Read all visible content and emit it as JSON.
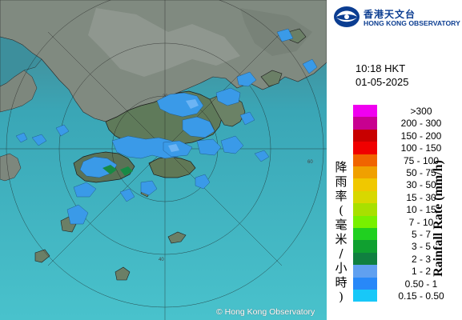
{
  "logo": {
    "name_zh": "香港天文台",
    "name_en": "HONG KONG OBSERVATORY",
    "icon": "observatory-logo-icon",
    "color": "#0b3d91"
  },
  "timestamp": {
    "time": "10:18 HKT",
    "date": "01-05-2025"
  },
  "legend": {
    "title_zh": "降雨率(毫米/小時)",
    "title_en": "Rainfall Rate (mm/h)",
    "classes": [
      {
        "label": ">300",
        "color": "#f000f0"
      },
      {
        "label": "200 - 300",
        "color": "#c80090"
      },
      {
        "label": "150 - 200",
        "color": "#c80000"
      },
      {
        "label": "100 - 150",
        "color": "#f00000"
      },
      {
        "label": "75 - 100",
        "color": "#f06400"
      },
      {
        "label": "50 - 75",
        "color": "#f0a000"
      },
      {
        "label": "30 - 50",
        "color": "#f0c800"
      },
      {
        "label": "15 - 30",
        "color": "#d8d800"
      },
      {
        "label": "10 - 15",
        "color": "#a8e000"
      },
      {
        "label": "7 - 10",
        "color": "#78f000"
      },
      {
        "label": "5 - 7",
        "color": "#20d020"
      },
      {
        "label": "3 - 5",
        "color": "#10a030"
      },
      {
        "label": "2 - 3",
        "color": "#108040"
      },
      {
        "label": "1 - 2",
        "color": "#60a0f0"
      },
      {
        "label": "0.50 - 1",
        "color": "#2888f8"
      },
      {
        "label": "0.15 - 0.50",
        "color": "#18c8f8"
      }
    ]
  },
  "map": {
    "range_ring_labels": [
      "20",
      "40",
      "60"
    ],
    "copyright": "© Hong Kong Observatory",
    "colors": {
      "sea": "#3fb6c4",
      "land": "#7d8a7a",
      "rain_light": "#3a9ae8"
    }
  }
}
